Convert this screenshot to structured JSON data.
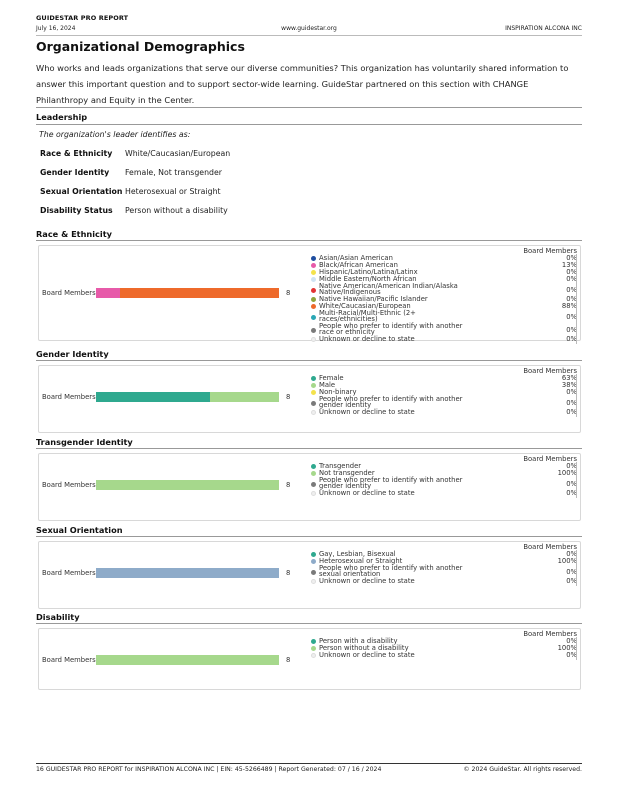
{
  "header": {
    "report_name": "GUIDESTAR PRO REPORT",
    "date": "July 16, 2024",
    "url": "www.guidestar.org",
    "org_name": "INSPIRATION ALCONA INC"
  },
  "section_title": "Organizational Demographics",
  "intro": "Who works and leads organizations that serve our diverse communities? This organization has voluntarily shared information to answer this important question and to support sector-wide learning. GuideStar partnered on this section with CHANGE Philanthropy and Equity in the Center.",
  "leadership": {
    "heading": "Leadership",
    "caption": "The organization's leader identifies as:",
    "rows": [
      {
        "label": "Race & Ethnicity",
        "value": "White/Caucasian/European"
      },
      {
        "label": "Gender Identity",
        "value": "Female, Not transgender"
      },
      {
        "label": "Sexual Orientation",
        "value": "Heterosexual or Straight"
      },
      {
        "label": "Disability Status",
        "value": "Person without a disability"
      }
    ]
  },
  "charts": [
    {
      "heading": "Race & Ethnicity",
      "bar_label": "Board Members",
      "count": "8",
      "legend_header": "Board Members",
      "segments": [
        {
          "color": "#e75aa9",
          "share": 13
        },
        {
          "color": "#ee6a2b",
          "share": 88
        }
      ],
      "legend": [
        {
          "label": [
            "Asian/Asian American"
          ],
          "value": "0%",
          "color": "#1f4ea0"
        },
        {
          "label": [
            "Black/African American"
          ],
          "value": "13%",
          "color": "#e75aa9"
        },
        {
          "label": [
            "Hispanic/Latino/Latina/Latinx"
          ],
          "value": "0%",
          "color": "#f4e24c"
        },
        {
          "label": [
            "Middle Eastern/North African"
          ],
          "value": "0%",
          "color": "#cfe3f3"
        },
        {
          "label": [
            "Native American/American Indian/Alaska",
            "Native/Indigenous"
          ],
          "value": "0%",
          "color": "#e33434"
        },
        {
          "label": [
            "Native Hawaiian/Pacific Islander"
          ],
          "value": "0%",
          "color": "#8ea53a"
        },
        {
          "label": [
            "White/Caucasian/European"
          ],
          "value": "88%",
          "color": "#ee6a2b"
        },
        {
          "label": [
            "Multi-Racial/Multi-Ethnic (2+",
            "races/ethnicities)"
          ],
          "value": "0%",
          "color": "#2aa7b5"
        },
        {
          "label": [
            "People who prefer to identify with another",
            "race or ethnicity"
          ],
          "value": "0%",
          "color": "#7a7a7a"
        },
        {
          "label": [
            "Unknown or decline to state"
          ],
          "value": "0%",
          "color": "#efefef"
        }
      ]
    },
    {
      "heading": "Gender Identity",
      "bar_label": "Board Members",
      "count": "8",
      "legend_header": "Board Members",
      "segments": [
        {
          "color": "#2fa98f",
          "share": 63
        },
        {
          "color": "#a6d88c",
          "share": 38
        }
      ],
      "legend": [
        {
          "label": [
            "Female"
          ],
          "value": "63%",
          "color": "#2fa98f"
        },
        {
          "label": [
            "Male"
          ],
          "value": "38%",
          "color": "#a6d88c"
        },
        {
          "label": [
            "Non-binary"
          ],
          "value": "0%",
          "color": "#f4e24c"
        },
        {
          "label": [
            "People who prefer to identify with another",
            "gender identity"
          ],
          "value": "0%",
          "color": "#7a7a7a"
        },
        {
          "label": [
            "Unknown or decline to state"
          ],
          "value": "0%",
          "color": "#efefef"
        }
      ]
    },
    {
      "heading": "Transgender Identity",
      "bar_label": "Board Members",
      "count": "8",
      "legend_header": "Board Members",
      "segments": [
        {
          "color": "#a6d88c",
          "share": 100
        }
      ],
      "legend": [
        {
          "label": [
            "Transgender"
          ],
          "value": "0%",
          "color": "#2fa98f"
        },
        {
          "label": [
            "Not transgender"
          ],
          "value": "100%",
          "color": "#a6d88c"
        },
        {
          "label": [
            "People who prefer to identify with another",
            "gender identity"
          ],
          "value": "0%",
          "color": "#7a7a7a"
        },
        {
          "label": [
            "Unknown or decline to state"
          ],
          "value": "0%",
          "color": "#efefef"
        }
      ]
    },
    {
      "heading": "Sexual Orientation",
      "bar_label": "Board Members",
      "count": "8",
      "legend_header": "Board Members",
      "segments": [
        {
          "color": "#8eabc9",
          "share": 100
        }
      ],
      "legend": [
        {
          "label": [
            "Gay, Lesbian, Bisexual"
          ],
          "value": "0%",
          "color": "#2fa98f"
        },
        {
          "label": [
            "Heterosexual or Straight"
          ],
          "value": "100%",
          "color": "#8eabc9"
        },
        {
          "label": [
            "People who prefer to identify with another",
            "sexual orientation"
          ],
          "value": "0%",
          "color": "#7a7a7a"
        },
        {
          "label": [
            "Unknown or decline to state"
          ],
          "value": "0%",
          "color": "#efefef"
        }
      ]
    },
    {
      "heading": "Disability",
      "bar_label": "Board Members",
      "count": "8",
      "legend_header": "Board Members",
      "segments": [
        {
          "color": "#a6d88c",
          "share": 100
        }
      ],
      "legend": [
        {
          "label": [
            "Person with a disability"
          ],
          "value": "0%",
          "color": "#2fa98f"
        },
        {
          "label": [
            "Person without a disability"
          ],
          "value": "100%",
          "color": "#a6d88c"
        },
        {
          "label": [
            "Unknown or decline to state"
          ],
          "value": "0%",
          "color": "#efefef"
        }
      ]
    }
  ],
  "footer": {
    "left": "16  GUIDESTAR PRO REPORT for INSPIRATION ALCONA INC   |   EIN: 45-5266489   |   Report Generated: 07 / 16 / 2024",
    "right": "© 2024 GuideStar. All rights reserved."
  }
}
